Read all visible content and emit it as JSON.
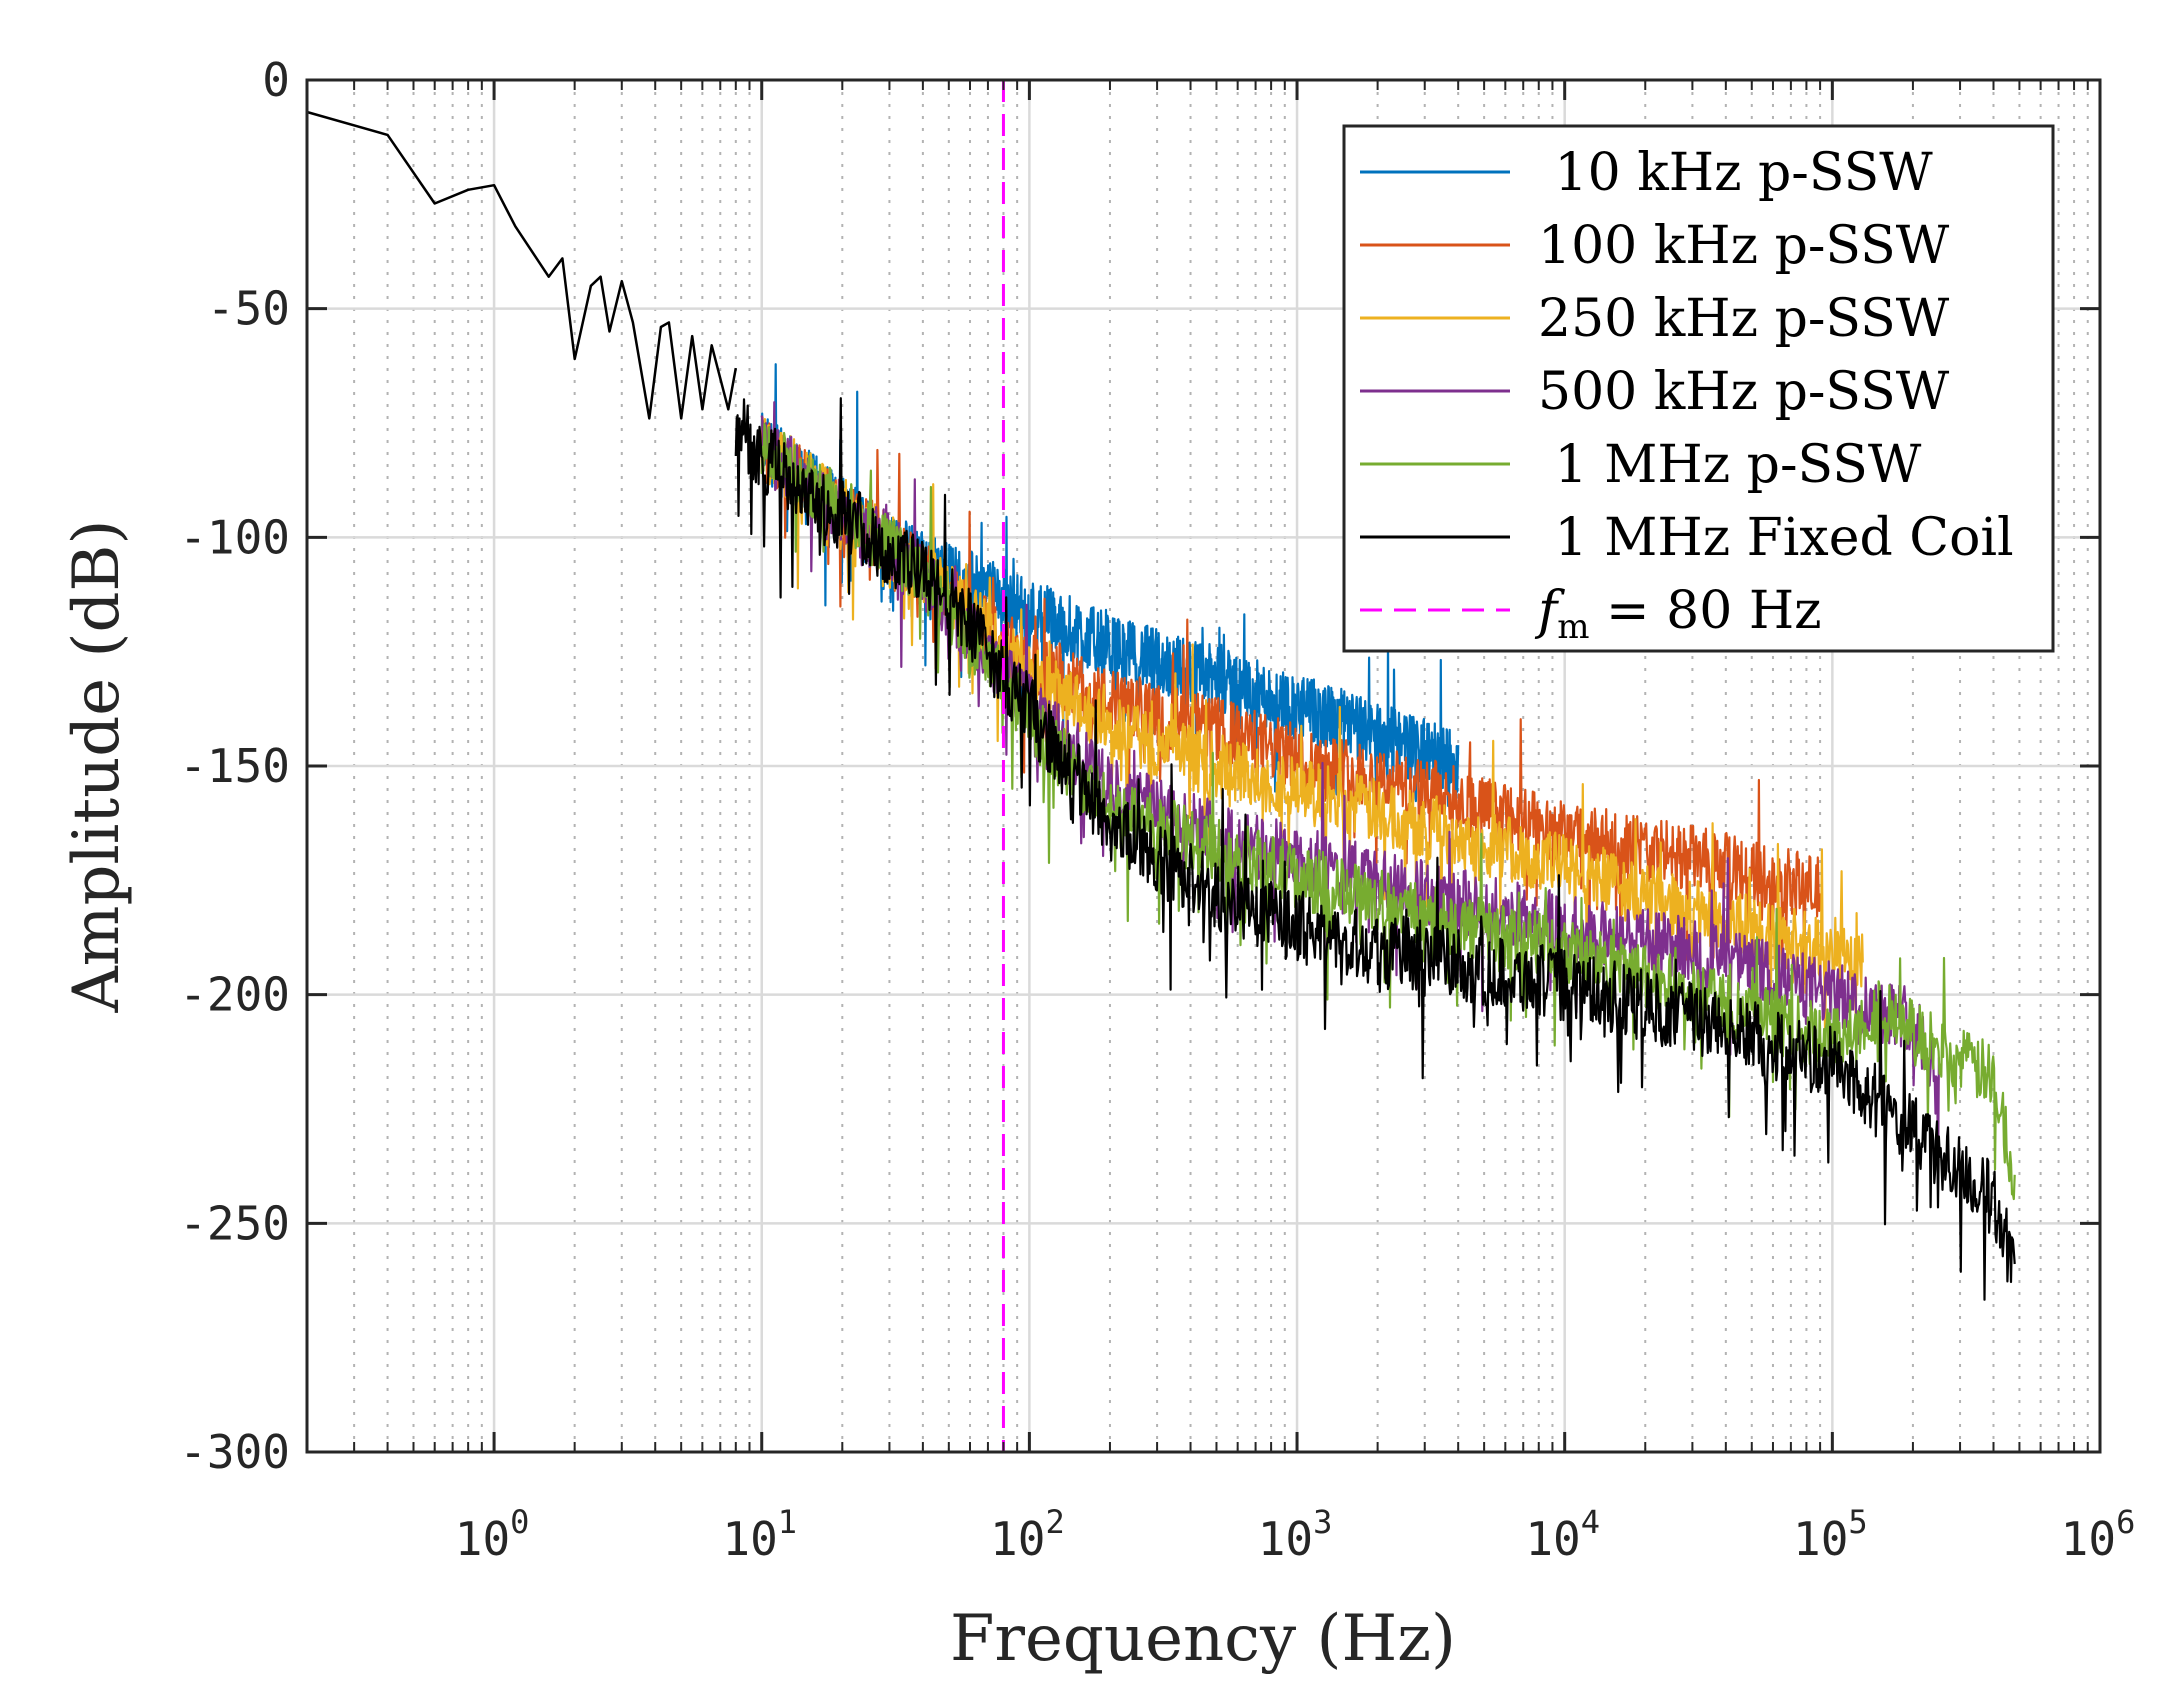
{
  "chart_data": {
    "type": "line",
    "x_scale": "log",
    "xlabel": "Frequency (Hz)",
    "ylabel": "Amplitude (dB)",
    "xlim": [
      0.2,
      1000000
    ],
    "ylim": [
      -300,
      0
    ],
    "grid": "major solid, minor dotted",
    "legend_position": "top-right",
    "x_ticks": [
      {
        "base": "10",
        "exp": "0",
        "value": 1
      },
      {
        "base": "10",
        "exp": "1",
        "value": 10
      },
      {
        "base": "10",
        "exp": "2",
        "value": 100
      },
      {
        "base": "10",
        "exp": "3",
        "value": 1000
      },
      {
        "base": "10",
        "exp": "4",
        "value": 10000
      },
      {
        "base": "10",
        "exp": "5",
        "value": 100000
      },
      {
        "base": "10",
        "exp": "6",
        "value": 1000000
      }
    ],
    "y_ticks": [
      {
        "label": "0",
        "value": 0
      },
      {
        "label": "-50",
        "value": -50
      },
      {
        "label": "-100",
        "value": -100
      },
      {
        "label": "-150",
        "value": -150
      },
      {
        "label": "-200",
        "value": -200
      },
      {
        "label": "-250",
        "value": -250
      },
      {
        "label": "-300",
        "value": -300
      }
    ],
    "series": [
      {
        "name": "10 kHz p-SSW",
        "color": "#0072BD",
        "noise": 9,
        "points": [
          [
            10,
            -80
          ],
          [
            30,
            -102
          ],
          [
            50,
            -108
          ],
          [
            100,
            -116
          ],
          [
            200,
            -124
          ],
          [
            500,
            -131
          ],
          [
            1000,
            -137
          ],
          [
            2000,
            -143
          ],
          [
            3000,
            -147
          ],
          [
            4000,
            -150
          ]
        ]
      },
      {
        "name": "100 kHz p-SSW",
        "color": "#D95319",
        "noise": 9,
        "points": [
          [
            10,
            -80
          ],
          [
            30,
            -102
          ],
          [
            50,
            -112
          ],
          [
            100,
            -128
          ],
          [
            200,
            -136
          ],
          [
            500,
            -142
          ],
          [
            1000,
            -148
          ],
          [
            3000,
            -155
          ],
          [
            10000,
            -165
          ],
          [
            30000,
            -170
          ],
          [
            90000,
            -177
          ]
        ]
      },
      {
        "name": "250 kHz p-SSW",
        "color": "#EDB120",
        "noise": 9,
        "points": [
          [
            10,
            -80
          ],
          [
            30,
            -102
          ],
          [
            50,
            -112
          ],
          [
            100,
            -130
          ],
          [
            200,
            -142
          ],
          [
            500,
            -150
          ],
          [
            1000,
            -155
          ],
          [
            3000,
            -163
          ],
          [
            10000,
            -172
          ],
          [
            30000,
            -182
          ],
          [
            100000,
            -190
          ],
          [
            130000,
            -193
          ]
        ]
      },
      {
        "name": "500 kHz p-SSW",
        "color": "#7E2F8E",
        "noise": 9,
        "points": [
          [
            10,
            -80
          ],
          [
            30,
            -102
          ],
          [
            50,
            -115
          ],
          [
            100,
            -137
          ],
          [
            200,
            -155
          ],
          [
            500,
            -165
          ],
          [
            1000,
            -170
          ],
          [
            3000,
            -178
          ],
          [
            10000,
            -185
          ],
          [
            30000,
            -190
          ],
          [
            100000,
            -200
          ],
          [
            200000,
            -205
          ],
          [
            250000,
            -218
          ]
        ]
      },
      {
        "name": "1 MHz p-SSW",
        "color": "#77AC30",
        "noise": 9,
        "points": [
          [
            10,
            -80
          ],
          [
            30,
            -102
          ],
          [
            50,
            -115
          ],
          [
            100,
            -140
          ],
          [
            200,
            -160
          ],
          [
            500,
            -168
          ],
          [
            1000,
            -174
          ],
          [
            3000,
            -183
          ],
          [
            10000,
            -190
          ],
          [
            30000,
            -200
          ],
          [
            100000,
            -210
          ],
          [
            150000,
            -203
          ],
          [
            250000,
            -212
          ],
          [
            400000,
            -218
          ],
          [
            480000,
            -240
          ]
        ]
      },
      {
        "name": "1 MHz Fixed Coil",
        "color": "#000000",
        "noise": 10,
        "points": [
          [
            8,
            -75
          ],
          [
            10,
            -82
          ],
          [
            30,
            -103
          ],
          [
            50,
            -113
          ],
          [
            100,
            -138
          ],
          [
            200,
            -163
          ],
          [
            500,
            -178
          ],
          [
            1000,
            -185
          ],
          [
            3000,
            -192
          ],
          [
            10000,
            -198
          ],
          [
            30000,
            -205
          ],
          [
            100000,
            -215
          ],
          [
            200000,
            -230
          ],
          [
            400000,
            -245
          ],
          [
            480000,
            -260
          ]
        ]
      }
    ],
    "low_freq_black_trace": [
      [
        0.2,
        -7
      ],
      [
        0.4,
        -12
      ],
      [
        0.6,
        -27
      ],
      [
        0.8,
        -24
      ],
      [
        1.0,
        -23
      ],
      [
        1.2,
        -32
      ],
      [
        1.6,
        -43
      ],
      [
        1.8,
        -39
      ],
      [
        2.0,
        -61
      ],
      [
        2.3,
        -45
      ],
      [
        2.5,
        -43
      ],
      [
        2.7,
        -55
      ],
      [
        3.0,
        -44
      ],
      [
        3.3,
        -53
      ],
      [
        3.8,
        -74
      ],
      [
        4.2,
        -54
      ],
      [
        4.5,
        -53
      ],
      [
        5.0,
        -74
      ],
      [
        5.5,
        -56
      ],
      [
        6.0,
        -72
      ],
      [
        6.5,
        -58
      ],
      [
        7.5,
        -72
      ],
      [
        8.0,
        -63
      ]
    ],
    "vertical_line": {
      "x": 80,
      "color": "#FF00FF",
      "style": "dashed",
      "label_f": "f",
      "label_sub": "m",
      "label_rest": " = 80 Hz"
    },
    "legend": [
      {
        "name": " 10 kHz p-SSW",
        "color": "#0072BD",
        "style": "solid"
      },
      {
        "name": "100 kHz p-SSW",
        "color": "#D95319",
        "style": "solid"
      },
      {
        "name": "250 kHz p-SSW",
        "color": "#EDB120",
        "style": "solid"
      },
      {
        "name": "500 kHz p-SSW",
        "color": "#7E2F8E",
        "style": "solid"
      },
      {
        "name": " 1 MHz p-SSW",
        "color": "#77AC30",
        "style": "solid"
      },
      {
        "name": " 1 MHz Fixed Coil",
        "color": "#000000",
        "style": "solid"
      }
    ]
  }
}
